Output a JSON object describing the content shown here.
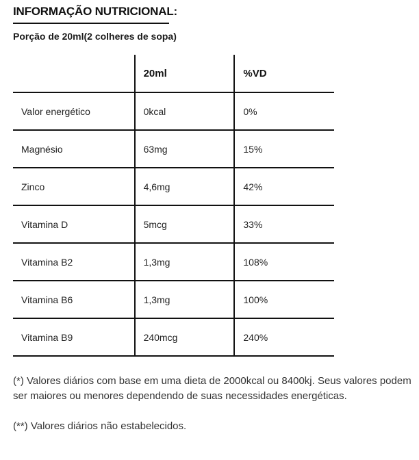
{
  "header": {
    "title": "INFORMAÇÃO NUTRICIONAL:",
    "portion": "Porção de 20ml(2 colheres de sopa)"
  },
  "table": {
    "columns": [
      "",
      "20ml",
      "%VD"
    ],
    "rows": [
      {
        "name": "Valor energético",
        "amount": "0kcal",
        "dv": "0%"
      },
      {
        "name": "Magnésio",
        "amount": "63mg",
        "dv": "15%"
      },
      {
        "name": "Zinco",
        "amount": "4,6mg",
        "dv": "42%"
      },
      {
        "name": "Vitamina D",
        "amount": "5mcg",
        "dv": "33%"
      },
      {
        "name": "Vitamina B2",
        "amount": "1,3mg",
        "dv": "108%"
      },
      {
        "name": "Vitamina B6",
        "amount": "1,3mg",
        "dv": "100%"
      },
      {
        "name": "Vitamina B9",
        "amount": "240mcg",
        "dv": "240%"
      }
    ]
  },
  "notes": [
    "(*) Valores diários com base em uma dieta de 2000kcal ou 8400kj. Seus valores podem ser maiores ou menores dependendo de suas necessidades energéticas.",
    "(**) Valores diários não estabelecidos."
  ]
}
